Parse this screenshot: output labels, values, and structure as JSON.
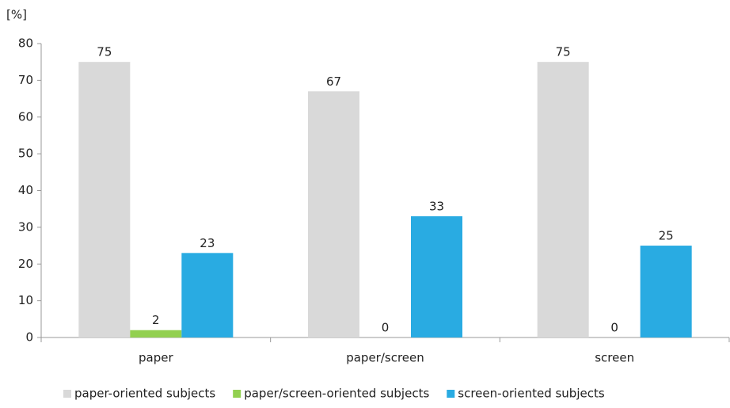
{
  "chart_data": {
    "type": "bar",
    "y_label": "[%]",
    "categories": [
      "paper",
      "paper/screen",
      "screen"
    ],
    "series": [
      {
        "name": "paper-oriented subjects",
        "color": "#d9d9d9",
        "values": [
          75,
          67,
          75
        ]
      },
      {
        "name": "paper/screen-oriented subjects",
        "color": "#92d050",
        "values": [
          2,
          0,
          0
        ]
      },
      {
        "name": "screen-oriented subjects",
        "color": "#29abe2",
        "values": [
          23,
          33,
          25
        ]
      }
    ],
    "ylim": [
      0,
      80
    ],
    "yticks": [
      0,
      10,
      20,
      30,
      40,
      50,
      60,
      70,
      80
    ],
    "grid": false,
    "legend": "bottom"
  }
}
